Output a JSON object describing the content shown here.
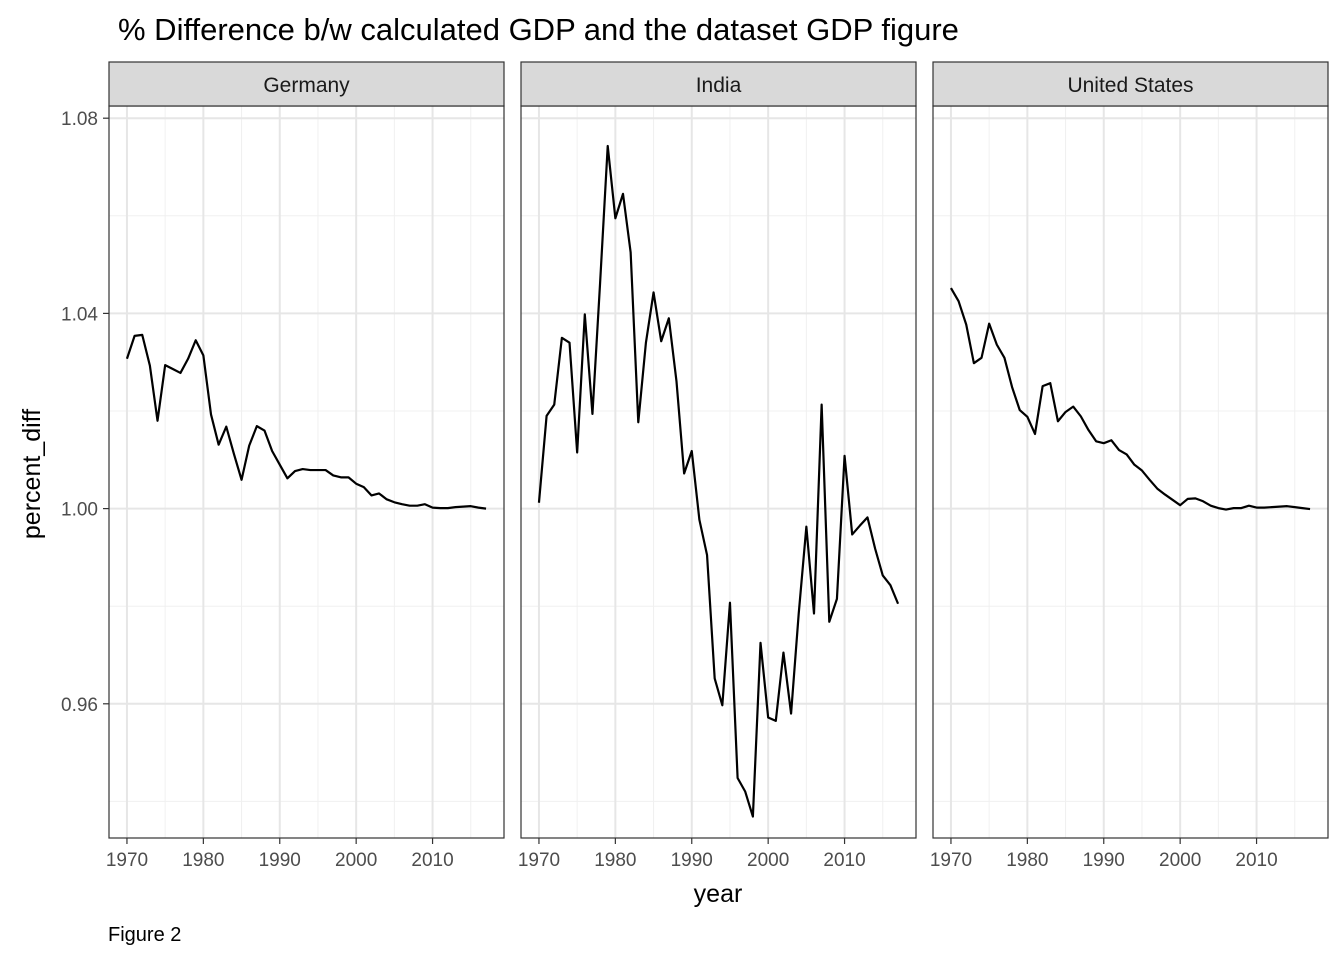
{
  "title": "% Difference b/w calculated  GDP and the dataset GDP figure",
  "caption": "Figure 2",
  "chart_data": {
    "type": "line",
    "title": "% Difference b/w calculated  GDP and the dataset GDP figure",
    "xlabel": "year",
    "ylabel": "percent_diff",
    "xlim": [
      1967.65,
      2019.35
    ],
    "ylim": [
      0.9325,
      1.0825
    ],
    "x_ticks": [
      1970,
      1980,
      1990,
      2000,
      2010
    ],
    "x_tick_labels": [
      "1970",
      "1980",
      "1990",
      "2000",
      "2010"
    ],
    "y_ticks": [
      0.96,
      1.0,
      1.04,
      1.08
    ],
    "y_tick_labels": [
      "0.96",
      "1.00",
      "1.04",
      "1.08"
    ],
    "y_minor_ticks": [
      0.94,
      0.98,
      1.02,
      1.06
    ],
    "x_minor_ticks": [
      1975,
      1985,
      1995,
      2005,
      2015
    ],
    "grid": true,
    "facets": [
      "Germany",
      "India",
      "United States"
    ],
    "line_color": "#000000",
    "strip_fill": "#d9d9d9",
    "x": [
      1970,
      1971,
      1972,
      1973,
      1974,
      1975,
      1976,
      1977,
      1978,
      1979,
      1980,
      1981,
      1982,
      1983,
      1984,
      1985,
      1986,
      1987,
      1988,
      1989,
      1990,
      1991,
      1992,
      1993,
      1994,
      1995,
      1996,
      1997,
      1998,
      1999,
      2000,
      2001,
      2002,
      2003,
      2004,
      2005,
      2006,
      2007,
      2008,
      2009,
      2010,
      2011,
      2012,
      2013,
      2014,
      2015,
      2016,
      2017
    ],
    "series": [
      {
        "facet": "Germany",
        "values": [
          1.0307,
          1.0354,
          1.0356,
          1.0293,
          1.018,
          1.0294,
          1.0286,
          1.0278,
          1.0307,
          1.0345,
          1.0314,
          1.0193,
          1.0131,
          1.0168,
          1.0112,
          1.0059,
          1.0129,
          1.0169,
          1.016,
          1.0118,
          1.009,
          1.0062,
          1.0077,
          1.0081,
          1.0079,
          1.0079,
          1.0079,
          1.0068,
          1.0064,
          1.0064,
          1.0051,
          1.0044,
          1.0027,
          1.0031,
          1.0019,
          1.0013,
          1.0009,
          1.0006,
          1.0006,
          1.0009,
          1.0002,
          1.0001,
          1.0001,
          1.0003,
          1.0004,
          1.0005,
          1.0002,
          1.0
        ]
      },
      {
        "facet": "India",
        "values": [
          1.0012,
          1.019,
          1.0213,
          1.035,
          1.034,
          1.0115,
          1.0398,
          1.0194,
          1.0462,
          1.0743,
          1.0595,
          1.0645,
          1.0525,
          1.0177,
          1.034,
          1.0443,
          1.0343,
          1.039,
          1.0261,
          1.0072,
          1.0118,
          0.9977,
          0.9905,
          0.9652,
          0.9597,
          0.9807,
          0.9448,
          0.942,
          0.9369,
          0.9725,
          0.9572,
          0.9565,
          0.9705,
          0.958,
          0.9785,
          0.9963,
          0.9785,
          1.0213,
          0.9768,
          0.9815,
          1.0108,
          0.9947,
          0.9965,
          0.9982,
          0.9918,
          0.9863,
          0.9843,
          0.9805
        ]
      },
      {
        "facet": "United States",
        "values": [
          1.0452,
          1.0425,
          1.0377,
          1.0298,
          1.0309,
          1.0379,
          1.0336,
          1.0309,
          1.0249,
          1.0202,
          1.0188,
          1.0153,
          1.0251,
          1.0257,
          1.0179,
          1.0198,
          1.0209,
          1.0189,
          1.0161,
          1.0138,
          1.0134,
          1.014,
          1.012,
          1.0111,
          1.009,
          1.0078,
          1.0059,
          1.0041,
          1.0029,
          1.0018,
          1.0007,
          1.002,
          1.0021,
          1.0015,
          1.0006,
          1.0001,
          0.9998,
          1.0001,
          1.0001,
          1.0006,
          1.0002,
          1.0002,
          1.0003,
          1.0004,
          1.0005,
          1.0003,
          1.0001,
          0.9999
        ]
      }
    ]
  }
}
